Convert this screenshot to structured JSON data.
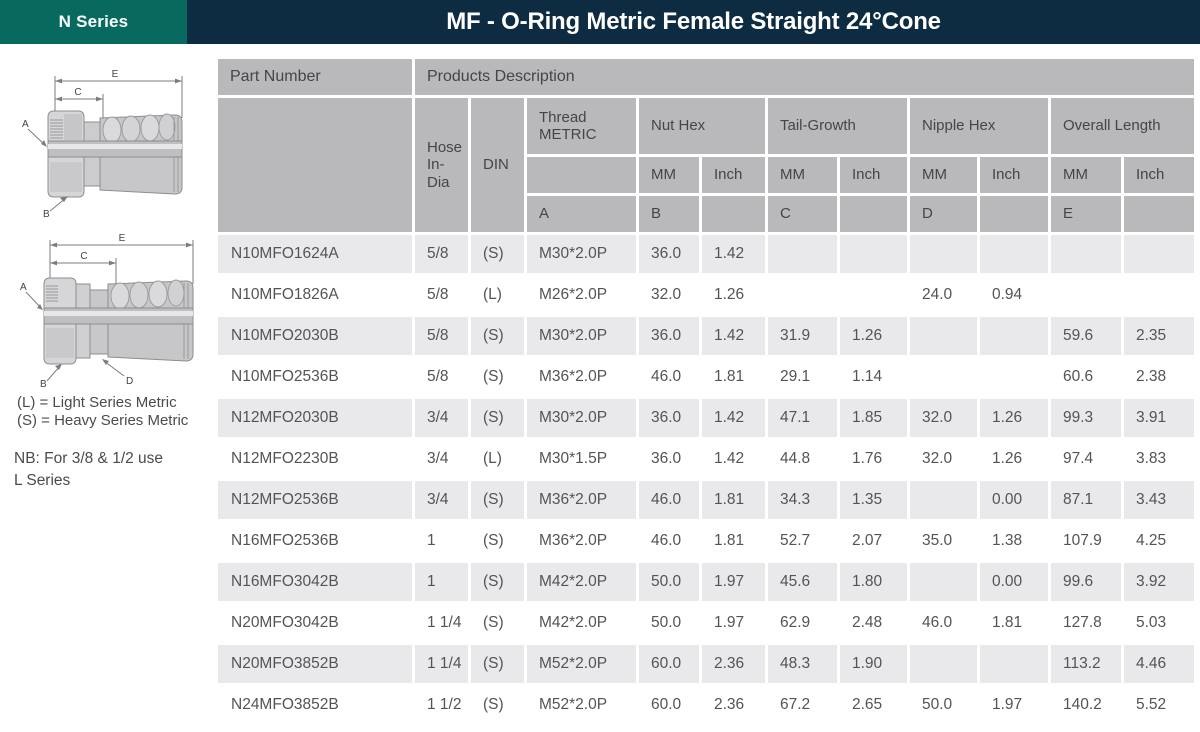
{
  "topbar": {
    "series_label": "N Series",
    "title": "MF - O-Ring Metric Female Straight 24°Cone"
  },
  "sidebar": {
    "legend_line1": "(L) = Light Series Metric",
    "legend_line2": "(S) = Heavy Series Metric",
    "note_line1": "NB: For 3/8 & 1/2 use",
    "note_line2": "L Series",
    "diagram1_labels": {
      "e": "E",
      "c": "C",
      "a": "A",
      "b": "B"
    },
    "diagram2_labels": {
      "e": "E",
      "c": "C",
      "a": "A",
      "b": "B",
      "d": "D"
    }
  },
  "table": {
    "header": {
      "part_number": "Part Number",
      "products_description": "Products Description",
      "hose_in_dia": "Hose In-Dia",
      "din": "DIN",
      "thread_metric": "Thread METRIC",
      "group_nut_hex": "Nut Hex",
      "group_tail_growth": "Tail-Growth",
      "group_nipple_hex": "Nipple Hex",
      "group_overall_length": "Overall Length",
      "unit_mm": "MM",
      "unit_inch": "Inch",
      "letter_a": "A",
      "letter_b": "B",
      "letter_c": "C",
      "letter_d": "D",
      "letter_e": "E"
    },
    "rows": [
      {
        "part": "N10MFO1624A",
        "hose": "5/8",
        "din": "(S)",
        "thread": "M30*2.0P",
        "values": [
          "36.0",
          "1.42",
          "",
          "",
          "",
          "",
          "",
          ""
        ]
      },
      {
        "part": "N10MFO1826A",
        "hose": "5/8",
        "din": "(L)",
        "thread": "M26*2.0P",
        "values": [
          "32.0",
          "1.26",
          "",
          "",
          "24.0",
          "0.94",
          "",
          ""
        ]
      },
      {
        "part": "N10MFO2030B",
        "hose": "5/8",
        "din": "(S)",
        "thread": "M30*2.0P",
        "values": [
          "36.0",
          "1.42",
          "31.9",
          "1.26",
          "",
          "",
          "59.6",
          "2.35"
        ]
      },
      {
        "part": "N10MFO2536B",
        "hose": "5/8",
        "din": "(S)",
        "thread": "M36*2.0P",
        "values": [
          "46.0",
          "1.81",
          "29.1",
          "1.14",
          "",
          "",
          "60.6",
          "2.38"
        ]
      },
      {
        "part": "N12MFO2030B",
        "hose": "3/4",
        "din": "(S)",
        "thread": "M30*2.0P",
        "values": [
          "36.0",
          "1.42",
          "47.1",
          "1.85",
          "32.0",
          "1.26",
          "99.3",
          "3.91"
        ]
      },
      {
        "part": "N12MFO2230B",
        "hose": "3/4",
        "din": "(L)",
        "thread": "M30*1.5P",
        "values": [
          "36.0",
          "1.42",
          "44.8",
          "1.76",
          "32.0",
          "1.26",
          "97.4",
          "3.83"
        ]
      },
      {
        "part": "N12MFO2536B",
        "hose": "3/4",
        "din": "(S)",
        "thread": "M36*2.0P",
        "values": [
          "46.0",
          "1.81",
          "34.3",
          "1.35",
          "",
          "0.00",
          "87.1",
          "3.43"
        ]
      },
      {
        "part": "N16MFO2536B",
        "hose": "1",
        "din": "(S)",
        "thread": "M36*2.0P",
        "values": [
          "46.0",
          "1.81",
          "52.7",
          "2.07",
          "35.0",
          "1.38",
          "107.9",
          "4.25"
        ]
      },
      {
        "part": "N16MFO3042B",
        "hose": "1",
        "din": "(S)",
        "thread": "M42*2.0P",
        "values": [
          "50.0",
          "1.97",
          "45.6",
          "1.80",
          "",
          "0.00",
          "99.6",
          "3.92"
        ]
      },
      {
        "part": "N20MFO3042B",
        "hose": "1 1/4",
        "din": "(S)",
        "thread": "M42*2.0P",
        "values": [
          "50.0",
          "1.97",
          "62.9",
          "2.48",
          "46.0",
          "1.81",
          "127.8",
          "5.03"
        ]
      },
      {
        "part": "N20MFO3852B",
        "hose": "1 1/4",
        "din": "(S)",
        "thread": "M52*2.0P",
        "values": [
          "60.0",
          "2.36",
          "48.3",
          "1.90",
          "",
          "",
          "113.2",
          "4.46"
        ]
      },
      {
        "part": "N24MFO3852B",
        "hose": "1 1/2",
        "din": "(S)",
        "thread": "M52*2.0P",
        "values": [
          "60.0",
          "2.36",
          "67.2",
          "2.65",
          "50.0",
          "1.97",
          "140.2",
          "5.52"
        ]
      }
    ]
  },
  "colors": {
    "teal": "#086A5F",
    "navy": "#0E2C41",
    "header-gray": "#B9B9BC",
    "stripe": "#E9E9EB",
    "ink": "#454547",
    "ink-light": "#545456"
  }
}
